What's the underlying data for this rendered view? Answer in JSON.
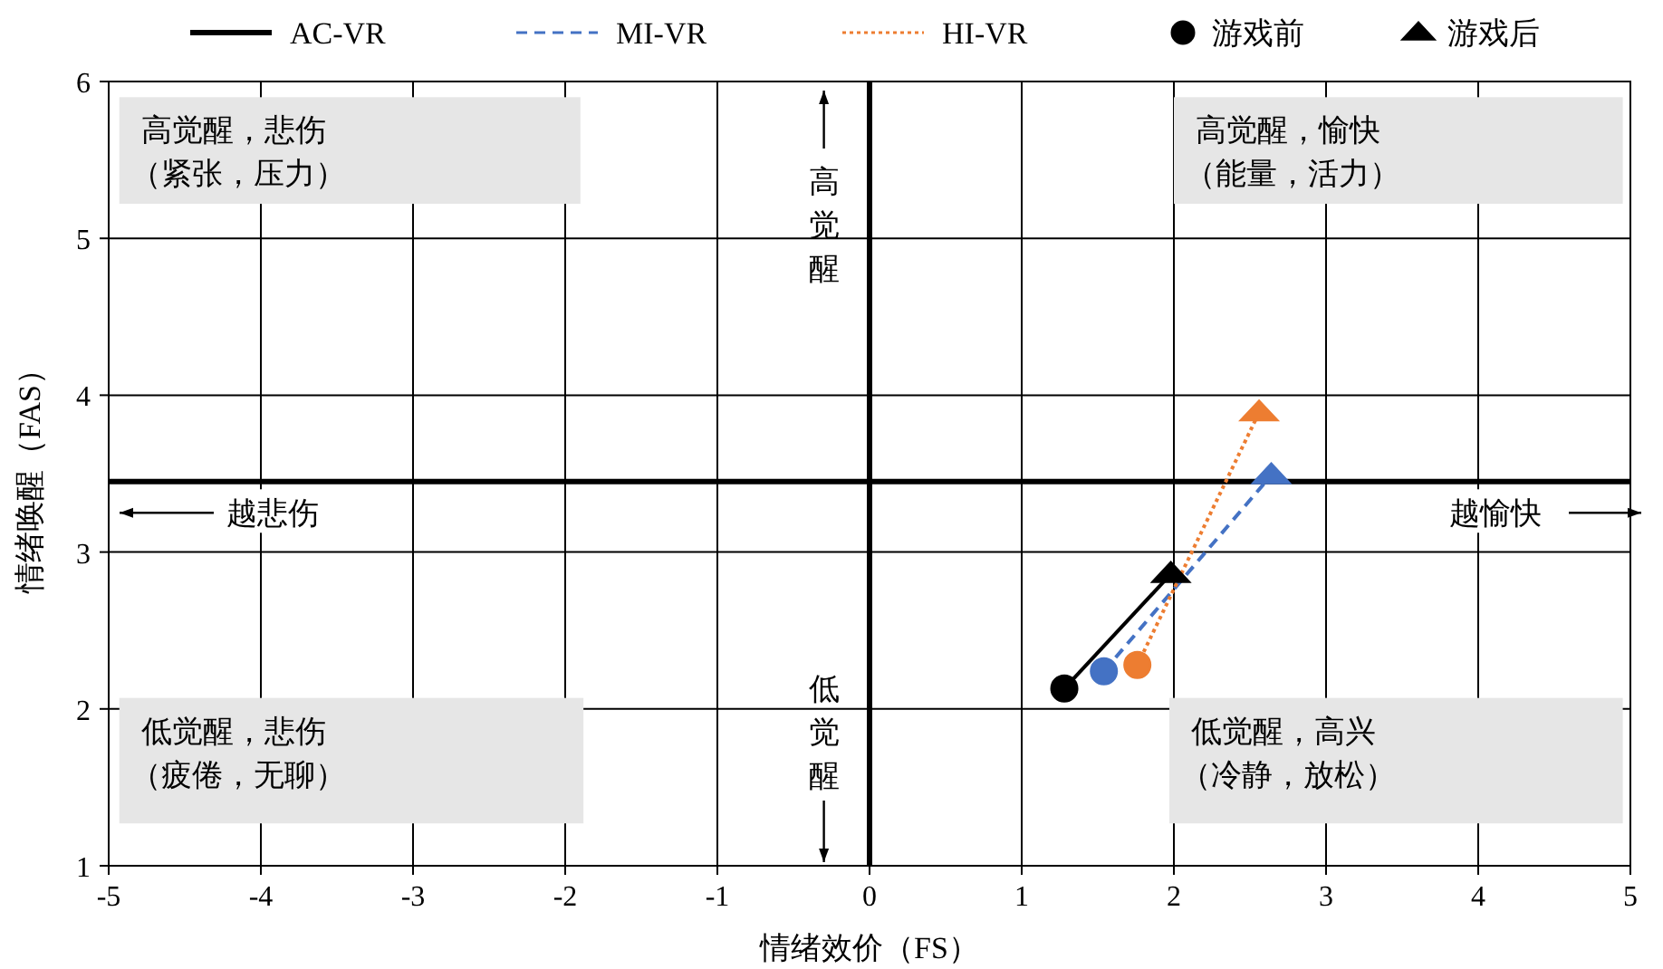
{
  "chart_data": {
    "type": "line",
    "xlabel": "情绪效价（FS）",
    "ylabel": "情绪唤醒（FAS）",
    "xlim": [
      -5,
      5
    ],
    "ylim": [
      1,
      6
    ],
    "xticks": [
      -5,
      -4,
      -3,
      -2,
      -1,
      0,
      1,
      2,
      3,
      4,
      5
    ],
    "yticks": [
      1,
      2,
      3,
      4,
      5,
      6
    ],
    "grid": true,
    "legend": "top",
    "marker": "none",
    "series": [
      {
        "name": "AC-VR",
        "color": "#000000",
        "line_style": "solid",
        "x": [
          1.28,
          1.98
        ],
        "values": [
          2.13,
          2.86
        ]
      },
      {
        "name": "MI-VR",
        "color": "#4472c4",
        "line_style": "dashed",
        "x": [
          1.54,
          2.64
        ],
        "values": [
          2.24,
          3.49
        ]
      },
      {
        "name": "HI-VR",
        "color": "#ed7d31",
        "line_style": "dotted",
        "x": [
          1.76,
          2.56
        ],
        "values": [
          2.28,
          3.89
        ]
      },
      {
        "name": "游戏前",
        "type": "scatter",
        "marker": "circle",
        "colors": [
          "#000000",
          "#4472c4",
          "#ed7d31"
        ],
        "x": [
          1.28,
          1.54,
          1.76
        ],
        "values": [
          2.13,
          2.24,
          2.28
        ]
      },
      {
        "name": "游戏后",
        "type": "scatter",
        "marker": "triangle",
        "colors": [
          "#000000",
          "#4472c4",
          "#ed7d31"
        ],
        "x": [
          1.98,
          2.64,
          2.56
        ],
        "values": [
          2.86,
          3.49,
          3.89
        ]
      }
    ],
    "ref_lines": [
      {
        "axis": "x",
        "value": 0,
        "color": "#000000"
      },
      {
        "axis": "y",
        "value": 3.45,
        "color": "#000000"
      }
    ],
    "annotations": [
      "高觉醒，悲伤",
      "（紧张，压力）",
      "高觉醒，愉快",
      "（能量，活力）",
      "低觉醒，悲伤",
      "（疲倦，无聊）",
      "低觉醒，高兴",
      "（冷静，放松）",
      "高觉醒",
      "低觉醒",
      "越悲伤",
      "越愉快"
    ]
  }
}
